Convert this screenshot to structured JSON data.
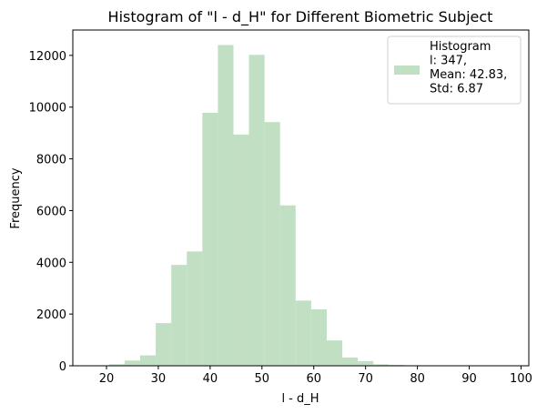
{
  "chart_data": {
    "type": "bar",
    "title": "Histogram of \"l - d_H\" for Different Biometric Subject",
    "xlabel": "l - d_H",
    "ylabel": "Frequency",
    "xlim": [
      13.5,
      101.5
    ],
    "ylim": [
      0,
      12980
    ],
    "x_ticks": [
      20,
      30,
      40,
      50,
      60,
      70,
      80,
      90,
      100
    ],
    "y_ticks": [
      0,
      2000,
      4000,
      6000,
      8000,
      10000,
      12000
    ],
    "bar_color": "#c1dfc2",
    "bin_edges": [
      17.5,
      20.5,
      23.5,
      26.5,
      29.5,
      32.5,
      35.5,
      38.5,
      41.5,
      44.5,
      47.5,
      50.5,
      53.5,
      56.5,
      59.5,
      62.5,
      65.5,
      68.5,
      71.5,
      74.5,
      77.5,
      80.5,
      83.5,
      86.5,
      89.5,
      92.5,
      95.5,
      98.5
    ],
    "values": [
      20,
      60,
      200,
      400,
      1650,
      3900,
      4420,
      9780,
      12400,
      8940,
      12020,
      9420,
      6200,
      2520,
      2180,
      980,
      320,
      180,
      55,
      35,
      20,
      15,
      8,
      5,
      3,
      2,
      2
    ],
    "legend": {
      "position": "top-right",
      "lines": [
        "Histogram",
        "l: 347,",
        "Mean: 42.83,",
        "Std: 6.87"
      ]
    }
  }
}
